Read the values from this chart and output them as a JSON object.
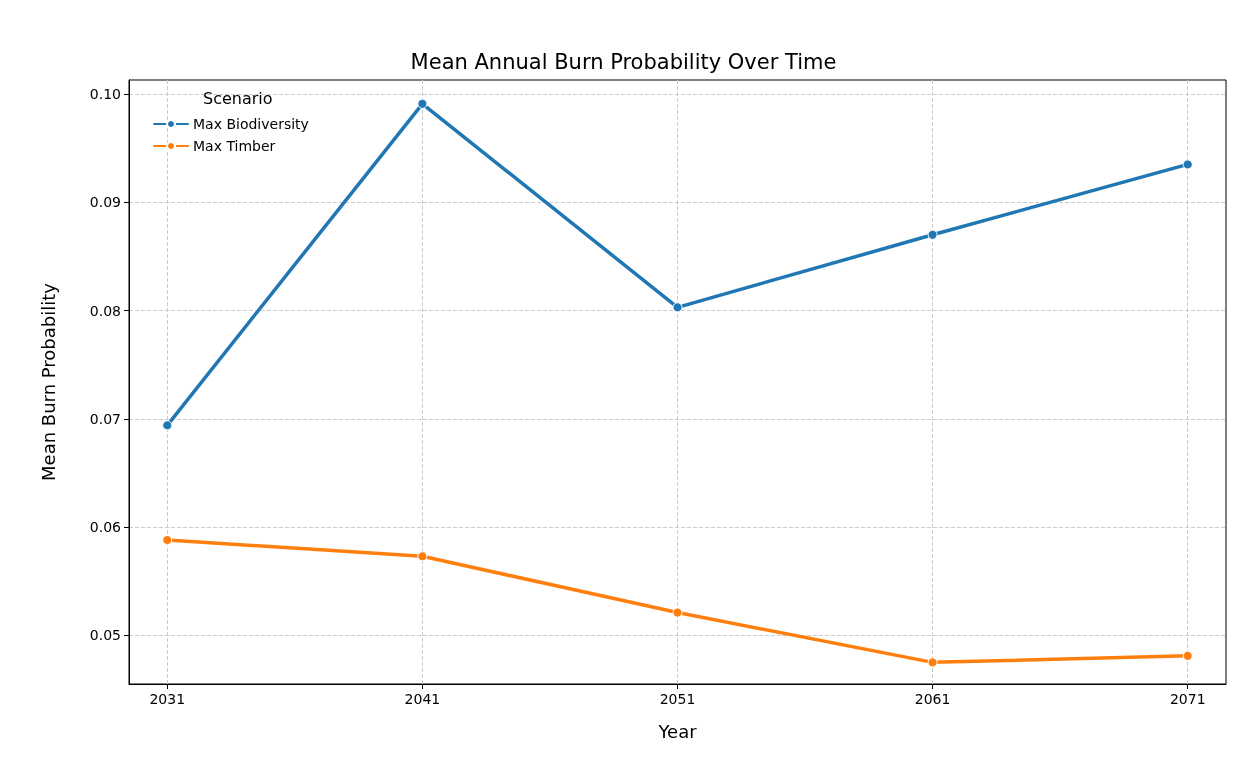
{
  "chart_data": {
    "type": "line",
    "title": "Mean Annual Burn Probability Over Time",
    "xlabel": "Year",
    "ylabel": "Mean Burn Probability",
    "legend_title": "Scenario",
    "x": [
      2031,
      2041,
      2051,
      2061,
      2071
    ],
    "series": [
      {
        "name": "Max Biodiversity",
        "color": "#1f77b4",
        "values": [
          0.0694,
          0.0991,
          0.0803,
          0.087,
          0.0935
        ]
      },
      {
        "name": "Max Timber",
        "color": "#ff7f0e",
        "values": [
          0.0588,
          0.0573,
          0.0521,
          0.0475,
          0.0481
        ]
      }
    ],
    "xlim": [
      2029.5,
      2072.5
    ],
    "xticks": [
      2031,
      2041,
      2051,
      2061,
      2071
    ],
    "ylim": [
      0.0455,
      0.1013
    ],
    "yticks": [
      0.05,
      0.06,
      0.07,
      0.08,
      0.09,
      {
        "value": 0.1,
        "label": "0.10"
      }
    ],
    "grid": true,
    "legend": "top left",
    "marker": "circle",
    "line_style": "solid"
  }
}
